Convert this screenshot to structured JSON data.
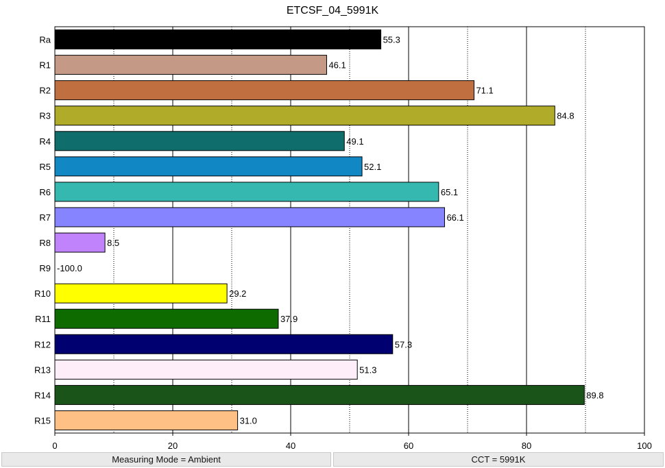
{
  "chart_data": {
    "type": "bar",
    "orientation": "horizontal",
    "title": "ETCSF_04_5991K",
    "categories": [
      "Ra",
      "R1",
      "R2",
      "R3",
      "R4",
      "R5",
      "R6",
      "R7",
      "R8",
      "R9",
      "R10",
      "R11",
      "R12",
      "R13",
      "R14",
      "R15"
    ],
    "values": [
      55.3,
      46.1,
      71.1,
      84.8,
      49.1,
      52.1,
      65.1,
      66.1,
      8.5,
      -100.0,
      29.2,
      37.9,
      57.3,
      51.3,
      89.8,
      31.0
    ],
    "value_labels": [
      "55.3",
      "46.1",
      "71.1",
      "84.8",
      "49.1",
      "52.1",
      "65.1",
      "66.1",
      "8.5",
      "-100.0",
      "29.2",
      "37.9",
      "57.3",
      "51.3",
      "89.8",
      "31.0"
    ],
    "colors": [
      "#000000",
      "#c49a86",
      "#c07040",
      "#b0ac2a",
      "#0f6e6c",
      "#1187c4",
      "#34b8b0",
      "#8684fe",
      "#c083fc",
      "#ffffff",
      "#ffff00",
      "#0e6b00",
      "#000070",
      "#fdeefa",
      "#1b5418",
      "#ffc085"
    ],
    "xlim": [
      0,
      100
    ],
    "xticks": [
      "0",
      "20",
      "40",
      "60",
      "80",
      "100"
    ],
    "xlabel": "",
    "ylabel": "",
    "grid_major_x": [
      20,
      40,
      60,
      80
    ],
    "grid_minor_x": [
      10,
      30,
      50,
      70,
      90
    ],
    "legend": "none"
  },
  "footer": {
    "measuring_mode": "Measuring Mode = Ambient",
    "cct": "CCT = 5991K"
  }
}
